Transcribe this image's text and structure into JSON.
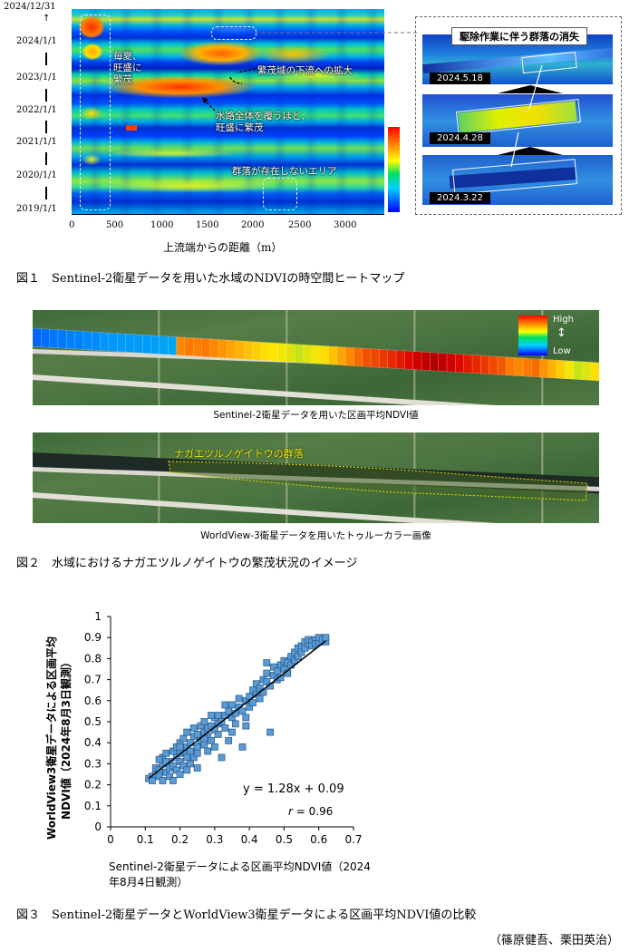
{
  "figure1": {
    "y_ticks": [
      "2024/12/31",
      "2024/1/1",
      "2023/1/1",
      "2022/1/1",
      "2021/1/1",
      "2020/1/1",
      "2019/1/1"
    ],
    "x_ticks": [
      "0",
      "500",
      "1000",
      "1500",
      "2000",
      "2500",
      "3000"
    ],
    "x_label": "上流端からの距離（m）",
    "annotations": {
      "summer": "毎夏、\n旺盛に\n繁茂",
      "downstream": "繁茂域の下流への拡大",
      "waterway": "水路全体を覆うほど、\n旺盛に繁茂",
      "absent": "群落が存在しないエリア"
    },
    "inset": {
      "title": "駆除作業に伴う群落の消失",
      "dates": [
        "2024.5.18",
        "2024.4.28",
        "2024.3.22"
      ]
    },
    "caption": "図１　Sentinel-2衛星データを用いた水域のNDVIの時空間ヒートマップ"
  },
  "figure2": {
    "legend_high": "High",
    "legend_low": "Low",
    "legend_arrow": "↕",
    "top_caption": "Sentinel-2衛星データを用いた区画平均NDVI値",
    "colony_label": "ナガエツルノゲイトウの群落",
    "bottom_caption": "WorldView-3衛星データを用いたトゥルーカラー画像",
    "caption": "図２　水域におけるナガエツルノゲイトウの繁茂状況のイメージ",
    "segment_ndvi": [
      0.1,
      0.11,
      0.12,
      0.12,
      0.13,
      0.13,
      0.14,
      0.14,
      0.15,
      0.15,
      0.16,
      0.16,
      0.17,
      0.17,
      0.18,
      0.19,
      0.2,
      0.78,
      0.8,
      0.79,
      0.8,
      0.78,
      0.76,
      0.74,
      0.72,
      0.7,
      0.68,
      0.66,
      0.65,
      0.64,
      0.62,
      0.6,
      0.62,
      0.64,
      0.66,
      0.7,
      0.74,
      0.78,
      0.82,
      0.85,
      0.86,
      0.88,
      0.9,
      0.92,
      0.94,
      0.96,
      0.97,
      0.98,
      0.97,
      0.96,
      0.94,
      0.92,
      0.9,
      0.88,
      0.86,
      0.84,
      0.8,
      0.78,
      0.8,
      0.82,
      0.76,
      0.72,
      0.68,
      0.64,
      0.6,
      0.62,
      0.66
    ]
  },
  "chart_data": {
    "type": "scatter",
    "title": "",
    "xlabel": "Sentinel-2衛星データによる区画平均NDVI値（2024年8月4日観測）",
    "ylabel": "WorldView3衛星データによる区画平均NDVI値（2024年8月3日観測）",
    "xlim": [
      0,
      0.7
    ],
    "ylim": [
      0,
      1
    ],
    "x_ticks": [
      "0",
      "0.1",
      "0.2",
      "0.3",
      "0.4",
      "0.5",
      "0.6",
      "0.7"
    ],
    "y_ticks": [
      "0",
      "0.1",
      "0.2",
      "0.3",
      "0.4",
      "0.5",
      "0.6",
      "0.7",
      "0.8",
      "0.9",
      "1"
    ],
    "equation": "y = 1.28x + 0.09",
    "r_symbol": "r",
    "r_value": " = 0.96",
    "fit": {
      "slope": 1.28,
      "intercept": 0.09
    },
    "points": [
      [
        0.11,
        0.23
      ],
      [
        0.12,
        0.24
      ],
      [
        0.12,
        0.22
      ],
      [
        0.13,
        0.25
      ],
      [
        0.13,
        0.28
      ],
      [
        0.14,
        0.27
      ],
      [
        0.14,
        0.24
      ],
      [
        0.15,
        0.22
      ],
      [
        0.15,
        0.3
      ],
      [
        0.15,
        0.33
      ],
      [
        0.16,
        0.26
      ],
      [
        0.16,
        0.35
      ],
      [
        0.17,
        0.28
      ],
      [
        0.17,
        0.24
      ],
      [
        0.17,
        0.31
      ],
      [
        0.18,
        0.36
      ],
      [
        0.18,
        0.29
      ],
      [
        0.18,
        0.22
      ],
      [
        0.19,
        0.33
      ],
      [
        0.19,
        0.27
      ],
      [
        0.19,
        0.38
      ],
      [
        0.2,
        0.31
      ],
      [
        0.2,
        0.25
      ],
      [
        0.2,
        0.4
      ],
      [
        0.2,
        0.35
      ],
      [
        0.21,
        0.29
      ],
      [
        0.21,
        0.36
      ],
      [
        0.21,
        0.42
      ],
      [
        0.22,
        0.33
      ],
      [
        0.22,
        0.45
      ],
      [
        0.22,
        0.38
      ],
      [
        0.23,
        0.3
      ],
      [
        0.23,
        0.4
      ],
      [
        0.23,
        0.36
      ],
      [
        0.24,
        0.43
      ],
      [
        0.24,
        0.33
      ],
      [
        0.24,
        0.47
      ],
      [
        0.25,
        0.38
      ],
      [
        0.25,
        0.44
      ],
      [
        0.25,
        0.35
      ],
      [
        0.26,
        0.41
      ],
      [
        0.26,
        0.48
      ],
      [
        0.27,
        0.39
      ],
      [
        0.27,
        0.45
      ],
      [
        0.27,
        0.5
      ],
      [
        0.28,
        0.43
      ],
      [
        0.28,
        0.36
      ],
      [
        0.28,
        0.47
      ],
      [
        0.29,
        0.48
      ],
      [
        0.29,
        0.41
      ],
      [
        0.3,
        0.46
      ],
      [
        0.3,
        0.52
      ],
      [
        0.3,
        0.38
      ],
      [
        0.31,
        0.49
      ],
      [
        0.31,
        0.44
      ],
      [
        0.32,
        0.5
      ],
      [
        0.32,
        0.33
      ],
      [
        0.33,
        0.53
      ],
      [
        0.33,
        0.47
      ],
      [
        0.34,
        0.55
      ],
      [
        0.34,
        0.41
      ],
      [
        0.35,
        0.52
      ],
      [
        0.35,
        0.58
      ],
      [
        0.36,
        0.54
      ],
      [
        0.36,
        0.49
      ],
      [
        0.37,
        0.57
      ],
      [
        0.37,
        0.61
      ],
      [
        0.38,
        0.55
      ],
      [
        0.38,
        0.38
      ],
      [
        0.39,
        0.6
      ],
      [
        0.39,
        0.52
      ],
      [
        0.4,
        0.62
      ],
      [
        0.4,
        0.57
      ],
      [
        0.41,
        0.65
      ],
      [
        0.41,
        0.59
      ],
      [
        0.42,
        0.63
      ],
      [
        0.42,
        0.68
      ],
      [
        0.43,
        0.66
      ],
      [
        0.43,
        0.61
      ],
      [
        0.44,
        0.7
      ],
      [
        0.44,
        0.64
      ],
      [
        0.45,
        0.69
      ],
      [
        0.45,
        0.73
      ],
      [
        0.46,
        0.67
      ],
      [
        0.46,
        0.45
      ],
      [
        0.47,
        0.72
      ],
      [
        0.47,
        0.76
      ],
      [
        0.48,
        0.7
      ],
      [
        0.48,
        0.74
      ],
      [
        0.49,
        0.77
      ],
      [
        0.49,
        0.71
      ],
      [
        0.5,
        0.75
      ],
      [
        0.5,
        0.79
      ],
      [
        0.51,
        0.78
      ],
      [
        0.51,
        0.73
      ],
      [
        0.52,
        0.81
      ],
      [
        0.52,
        0.77
      ],
      [
        0.53,
        0.83
      ],
      [
        0.53,
        0.79
      ],
      [
        0.54,
        0.85
      ],
      [
        0.54,
        0.81
      ],
      [
        0.55,
        0.86
      ],
      [
        0.55,
        0.83
      ],
      [
        0.56,
        0.88
      ],
      [
        0.56,
        0.85
      ],
      [
        0.57,
        0.87
      ],
      [
        0.57,
        0.89
      ],
      [
        0.58,
        0.88
      ],
      [
        0.58,
        0.86
      ],
      [
        0.59,
        0.89
      ],
      [
        0.59,
        0.87
      ],
      [
        0.6,
        0.88
      ],
      [
        0.6,
        0.9
      ],
      [
        0.61,
        0.89
      ],
      [
        0.62,
        0.88
      ],
      [
        0.62,
        0.9
      ],
      [
        0.27,
        0.42
      ],
      [
        0.31,
        0.53
      ],
      [
        0.35,
        0.45
      ],
      [
        0.25,
        0.28
      ],
      [
        0.22,
        0.27
      ],
      [
        0.2,
        0.38
      ],
      [
        0.29,
        0.53
      ],
      [
        0.33,
        0.58
      ],
      [
        0.39,
        0.48
      ],
      [
        0.45,
        0.78
      ],
      [
        0.16,
        0.31
      ],
      [
        0.14,
        0.32
      ]
    ]
  },
  "figure3": {
    "caption": "図３　Sentinel-2衛星データとWorldView3衛星データによる区画平均NDVI値の比較"
  },
  "authors": "（篠原健吾、栗田英治）"
}
